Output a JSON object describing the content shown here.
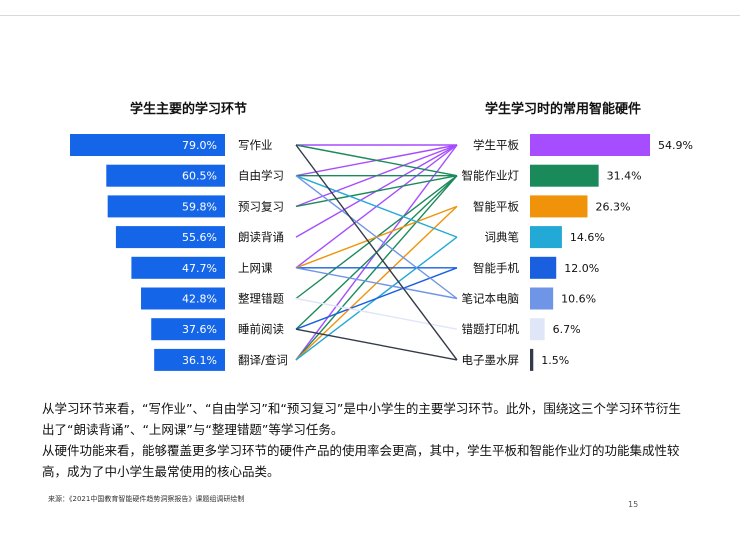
{
  "chart_data": [
    {
      "type": "bar",
      "orientation": "horizontal",
      "title": "学生主要的学习环节",
      "categories": [
        "写作业",
        "自由学习",
        "预习复习",
        "朗读背诵",
        "上网课",
        "整理错题",
        "睡前阅读",
        "翻译/查词"
      ],
      "values": [
        79.0,
        60.5,
        59.8,
        55.6,
        47.7,
        42.8,
        37.6,
        36.1
      ],
      "value_labels": [
        "79.0%",
        "60.5%",
        "59.8%",
        "55.6%",
        "47.7%",
        "42.8%",
        "37.6%",
        "36.1%"
      ],
      "color": "#1565e8"
    },
    {
      "type": "bar",
      "orientation": "horizontal",
      "title": "学生学习时的常用智能硬件",
      "categories": [
        "学生平板",
        "智能作业灯",
        "智能平板",
        "词典笔",
        "智能手机",
        "笔记本电脑",
        "错题打印机",
        "电子墨水屏"
      ],
      "values": [
        54.9,
        31.4,
        26.3,
        14.6,
        12.0,
        10.6,
        6.7,
        1.5
      ],
      "value_labels": [
        "54.9%",
        "31.4%",
        "26.3%",
        "14.6%",
        "12.0%",
        "10.6%",
        "6.7%",
        "1.5%"
      ],
      "colors": [
        "#a64dff",
        "#1b8a5a",
        "#f0920a",
        "#23a9d6",
        "#1a5fe0",
        "#6f96e6",
        "#dfe6f7",
        "#333a48"
      ]
    },
    {
      "type": "diagram",
      "description_free_links_from_hardware_to_activities": true,
      "links": [
        {
          "from": "学生平板",
          "to": [
            "写作业",
            "自由学习",
            "预习复习",
            "朗读背诵",
            "上网课",
            "翻译/查词"
          ],
          "color": "#a64dff"
        },
        {
          "from": "智能作业灯",
          "to": [
            "写作业",
            "自由学习",
            "预习复习",
            "整理错题",
            "睡前阅读",
            "翻译/查词"
          ],
          "color": "#1b8a5a"
        },
        {
          "from": "智能平板",
          "to": [
            "上网课",
            "翻译/查词"
          ],
          "color": "#f0920a"
        },
        {
          "from": "词典笔",
          "to": [
            "自由学习",
            "翻译/查词"
          ],
          "color": "#23a9d6"
        },
        {
          "from": "智能手机",
          "to": [
            "上网课",
            "睡前阅读"
          ],
          "color": "#1a5fe0"
        },
        {
          "from": "笔记本电脑",
          "to": [
            "自由学习",
            "上网课"
          ],
          "color": "#6f96e6"
        },
        {
          "from": "错题打印机",
          "to": [
            "整理错题"
          ],
          "color": "#dfe6f7"
        },
        {
          "from": "电子墨水屏",
          "to": [
            "写作业",
            "睡前阅读"
          ],
          "color": "#333a48"
        }
      ]
    }
  ],
  "text": {
    "paragraph1": "从学习环节来看，“写作业”、“自由学习”和“预习复习”是中小学生的主要学习环节。此外，围绕这三个学习环节衍生出了“朗读背诵”、“上网课”与“整理错题”等学习任务。",
    "paragraph2": "从硬件功能来看，能够覆盖更多学习环节的硬件产品的使用率会更高，其中，学生平板和智能作业灯的功能集成性较高，成为了中小学生最常使用的核心品类。",
    "source": "来源：《2021中国教育智能硬件趋势洞察报告》课题组调研绘制",
    "page_number": "15"
  }
}
